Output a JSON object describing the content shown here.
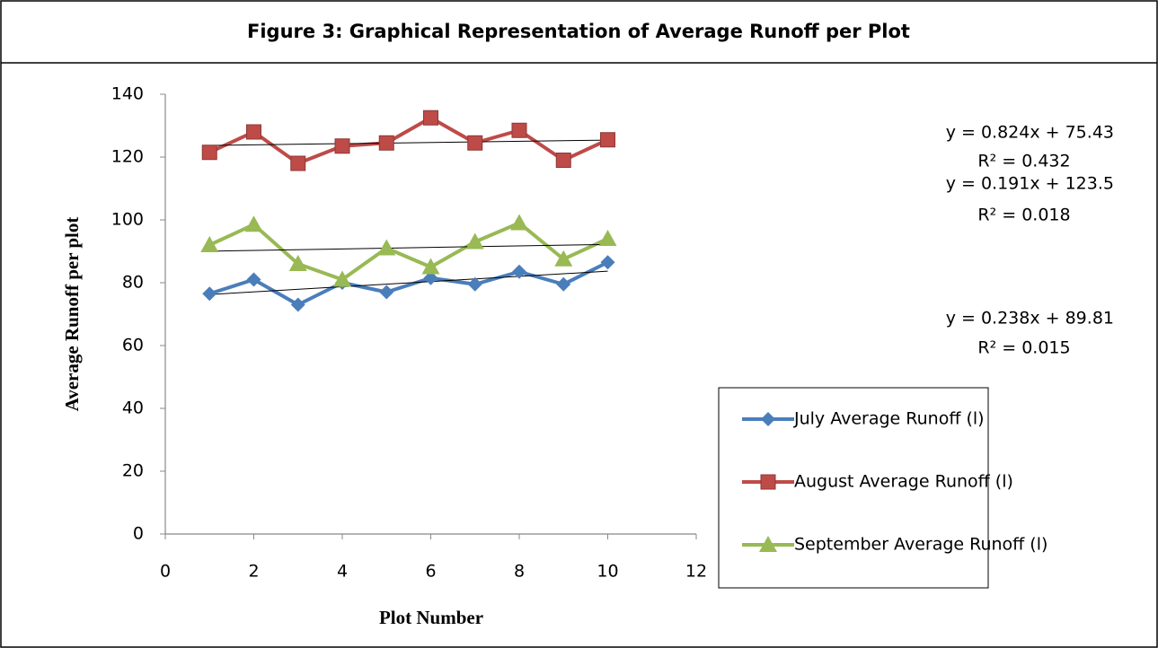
{
  "chart_data": {
    "type": "line",
    "title": "Figure 3: Graphical Representation of Average Runoff per Plot",
    "x_label": "Plot Number",
    "y_label": "Average Runoff per plot",
    "x": [
      1,
      2,
      3,
      4,
      5,
      6,
      7,
      8,
      9,
      10
    ],
    "xlim": [
      0,
      12
    ],
    "xticks": [
      0,
      2,
      4,
      6,
      8,
      10,
      12
    ],
    "ylim": [
      0,
      140
    ],
    "yticks": [
      0,
      20,
      40,
      60,
      80,
      100,
      120,
      140
    ],
    "grid": false,
    "legend": "right",
    "series": [
      {
        "name": "July Average Runoff (l)",
        "color": "#4a7ebb",
        "marker": "diamond",
        "values": [
          76.5,
          81,
          73,
          80,
          77,
          81.5,
          79.5,
          83.5,
          79.5,
          86.5
        ],
        "trendline": {
          "equation": "y = 0.824x + 75.43",
          "r_squared": "R² = 0.432",
          "slope": 0.824,
          "intercept": 75.43
        }
      },
      {
        "name": "August Average Runoff (l)",
        "color": "#be4b48",
        "marker": "square",
        "values": [
          121.5,
          128,
          118,
          123.5,
          124.5,
          132.5,
          124.5,
          128.5,
          119,
          125.5
        ],
        "trendline": {
          "equation": "y = 0.191x + 123.5",
          "r_squared": "R² = 0.018",
          "slope": 0.191,
          "intercept": 123.5
        }
      },
      {
        "name": "September Average Runoff (l)",
        "color": "#98b954",
        "marker": "triangle",
        "values": [
          92,
          98.5,
          86,
          81,
          91,
          85,
          93,
          99,
          87.5,
          94
        ],
        "trendline": {
          "equation": "y = 0.238x + 89.81",
          "r_squared": "R² = 0.015",
          "slope": 0.238,
          "intercept": 89.81
        }
      }
    ]
  }
}
